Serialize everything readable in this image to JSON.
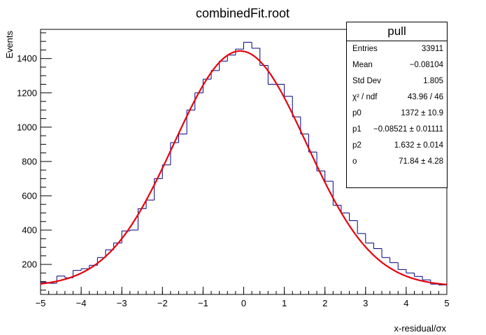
{
  "chart_data": {
    "type": "histogram+fit",
    "title": "combinedFit.root",
    "xlabel": "x-residual/σx",
    "ylabel": "Events",
    "xlim": [
      -5,
      5
    ],
    "ylim": [
      25,
      1570
    ],
    "xticks": [
      -5,
      -4,
      -3,
      -2,
      -1,
      0,
      1,
      2,
      3,
      4,
      5
    ],
    "yticks": [
      200,
      400,
      600,
      800,
      1000,
      1200,
      1400
    ],
    "bin_edges": [
      -5.0,
      -4.8,
      -4.6,
      -4.4,
      -4.2,
      -4.0,
      -3.8,
      -3.6,
      -3.4,
      -3.2,
      -3.0,
      -2.8,
      -2.6,
      -2.4,
      -2.2,
      -2.0,
      -1.8,
      -1.6,
      -1.4,
      -1.2,
      -1.0,
      -0.8,
      -0.6,
      -0.4,
      -0.2,
      0.0,
      0.2,
      0.4,
      0.6,
      0.8,
      1.0,
      1.2,
      1.4,
      1.6,
      1.8,
      2.0,
      2.2,
      2.4,
      2.6,
      2.8,
      3.0,
      3.2,
      3.4,
      3.6,
      3.8,
      4.0,
      4.2,
      4.4,
      4.6,
      4.8,
      5.0
    ],
    "counts": [
      95,
      90,
      132,
      122,
      165,
      175,
      195,
      240,
      285,
      325,
      395,
      400,
      525,
      575,
      700,
      780,
      910,
      960,
      1100,
      1200,
      1280,
      1330,
      1385,
      1420,
      1455,
      1495,
      1460,
      1360,
      1250,
      1250,
      1180,
      1060,
      960,
      855,
      745,
      685,
      545,
      500,
      455,
      380,
      325,
      292,
      240,
      210,
      170,
      150,
      130,
      110,
      85,
      80
    ],
    "fit": {
      "p0": 1372,
      "p1": -0.08521,
      "p2": 1.632,
      "o": 71.84
    },
    "histogram_color": "#00007f",
    "fit_color": "#e8000b"
  },
  "stats": {
    "title": "pull",
    "rows": [
      {
        "key": "Entries",
        "value": "33911"
      },
      {
        "key": "Mean",
        "value": "−0.08104"
      },
      {
        "key": "Std Dev",
        "value": "1.805"
      },
      {
        "key": "χ² / ndf",
        "value": "43.96 / 46"
      },
      {
        "key": "p0",
        "value": "1372 ± 10.9"
      },
      {
        "key": "p1",
        "value": "−0.08521 ± 0.01111"
      },
      {
        "key": "p2",
        "value": "1.632 ± 0.014"
      },
      {
        "key": "o",
        "value": "71.84 ± 4.28"
      }
    ]
  }
}
